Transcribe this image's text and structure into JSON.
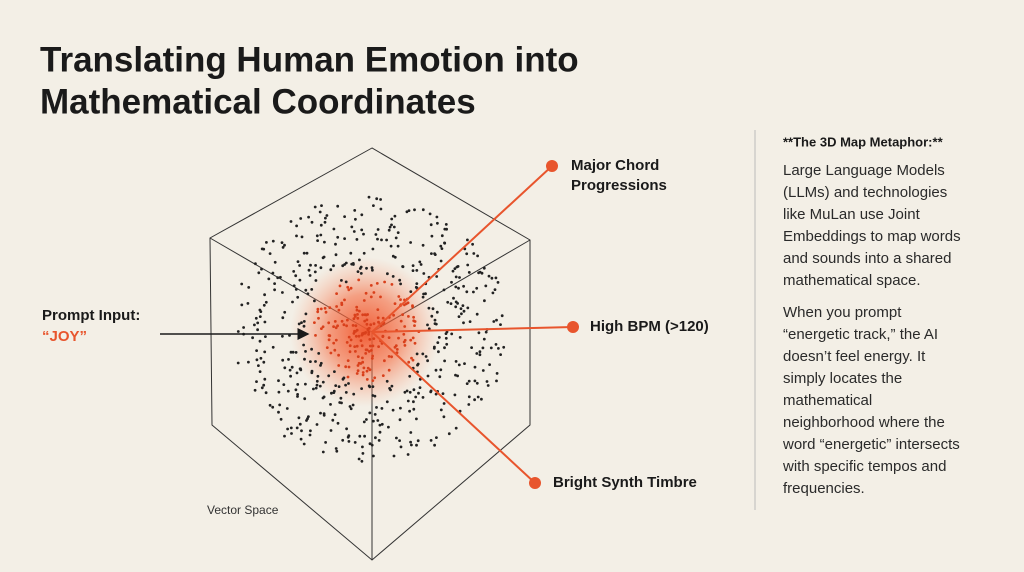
{
  "header": {
    "title_lines": [
      "Translating Human Emotion into",
      "Mathematical Coordinates"
    ]
  },
  "diagram": {
    "prompt_label": "Prompt Input:",
    "prompt_value": "“JOY”",
    "space_label": "Vector Space",
    "callouts": [
      {
        "lines": [
          "Major Chord",
          "Progressions"
        ]
      },
      {
        "lines": [
          "High BPM (>120)"
        ]
      },
      {
        "lines": [
          "Bright Synth Timbre"
        ]
      }
    ]
  },
  "sidebar": {
    "heading": "**The 3D Map Metaphor:**",
    "paragraphs": [
      {
        "lines": [
          "Large Language Models",
          "(LLMs) and technologies",
          "like MuLan use Joint",
          "Embeddings to map words",
          "and sounds into a shared",
          "mathematical space."
        ]
      },
      {
        "lines": [
          "When you prompt",
          "“energetic track,” the AI",
          "doesn’t feel energy. It",
          "simply locates the",
          "mathematical",
          "neighborhood where the",
          "word “energetic” intersects",
          "with specific tempos and",
          "frequencies."
        ]
      }
    ]
  }
}
